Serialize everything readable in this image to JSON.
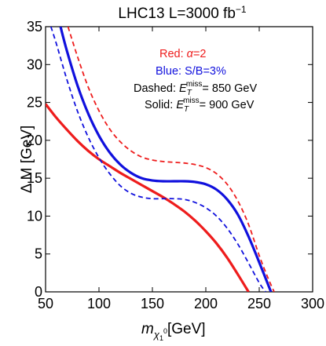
{
  "chart_data": {
    "type": "line",
    "title": {
      "prefix": "LHC13   L=3000 fb",
      "sup": "−1"
    },
    "xlabel": {
      "main": "m",
      "sub": "χ",
      "subsub": "1",
      "subsup": "0",
      "unit": "[GeV]"
    },
    "ylabel": "Δ M [GeV]",
    "xlim": [
      50,
      300
    ],
    "ylim": [
      0,
      35
    ],
    "xticks": [
      "50",
      "100",
      "150",
      "200",
      "250",
      "300"
    ],
    "yticks": [
      "0",
      "5",
      "10",
      "15",
      "20",
      "25",
      "30",
      "35"
    ],
    "legend": {
      "position": "top-right",
      "red": {
        "prefix": "Red: ",
        "symbol": "α",
        "suffix": "=2",
        "color": "#ee1c1c"
      },
      "blue": {
        "text": "Blue: S/B=3%",
        "color": "#1010dd"
      },
      "dashed": {
        "prefix": "Dashed: ",
        "E": "E",
        "sub": "T",
        "sup": "miss",
        "suffix": "= 850 GeV"
      },
      "solid": {
        "prefix": "Solid: ",
        "E": "E",
        "sub": "T",
        "sup": "miss",
        "suffix": "= 900 GeV"
      }
    },
    "series": [
      {
        "color": "#ee1c1c",
        "style": "solid",
        "x": [
          50,
          60,
          70,
          80,
          90,
          100,
          110,
          120,
          130,
          140,
          150,
          160,
          170,
          180,
          190,
          200,
          210,
          220,
          230,
          240
        ],
        "y": [
          24.8,
          23.0,
          21.4,
          19.9,
          18.6,
          17.5,
          16.6,
          15.7,
          14.9,
          14.1,
          13.3,
          12.5,
          11.6,
          10.6,
          9.4,
          8.0,
          6.4,
          4.5,
          2.3,
          0.0
        ]
      },
      {
        "color": "#1010dd",
        "style": "solid",
        "x": [
          64,
          70,
          80,
          90,
          100,
          110,
          120,
          130,
          140,
          150,
          160,
          170,
          180,
          190,
          200,
          210,
          220,
          230,
          240,
          250,
          261
        ],
        "y": [
          35.0,
          31.8,
          27.2,
          23.5,
          20.6,
          18.4,
          16.8,
          15.7,
          15.0,
          14.7,
          14.6,
          14.6,
          14.6,
          14.5,
          14.2,
          13.5,
          12.2,
          10.2,
          7.3,
          3.9,
          0.0
        ]
      },
      {
        "color": "#1010dd",
        "style": "dashed",
        "x": [
          55,
          60,
          70,
          80,
          90,
          100,
          110,
          120,
          130,
          140,
          150,
          160,
          170,
          180,
          190,
          200,
          210,
          220,
          230,
          240,
          250,
          256
        ],
        "y": [
          35.0,
          32.8,
          28.0,
          23.8,
          20.4,
          17.7,
          15.6,
          14.0,
          13.0,
          12.5,
          12.3,
          12.3,
          12.3,
          12.2,
          11.8,
          11.1,
          10.0,
          8.4,
          6.3,
          3.8,
          1.2,
          0.0
        ]
      },
      {
        "color": "#ee1c1c",
        "style": "dashed",
        "x": [
          71,
          80,
          90,
          100,
          110,
          120,
          130,
          140,
          150,
          160,
          170,
          180,
          190,
          200,
          210,
          220,
          230,
          240,
          250,
          258,
          264
        ],
        "y": [
          35.0,
          31.0,
          27.0,
          23.9,
          21.5,
          19.8,
          18.6,
          17.8,
          17.4,
          17.2,
          17.1,
          17.0,
          16.8,
          16.4,
          15.6,
          14.2,
          12.0,
          8.9,
          4.8,
          1.9,
          0.0
        ]
      }
    ]
  }
}
